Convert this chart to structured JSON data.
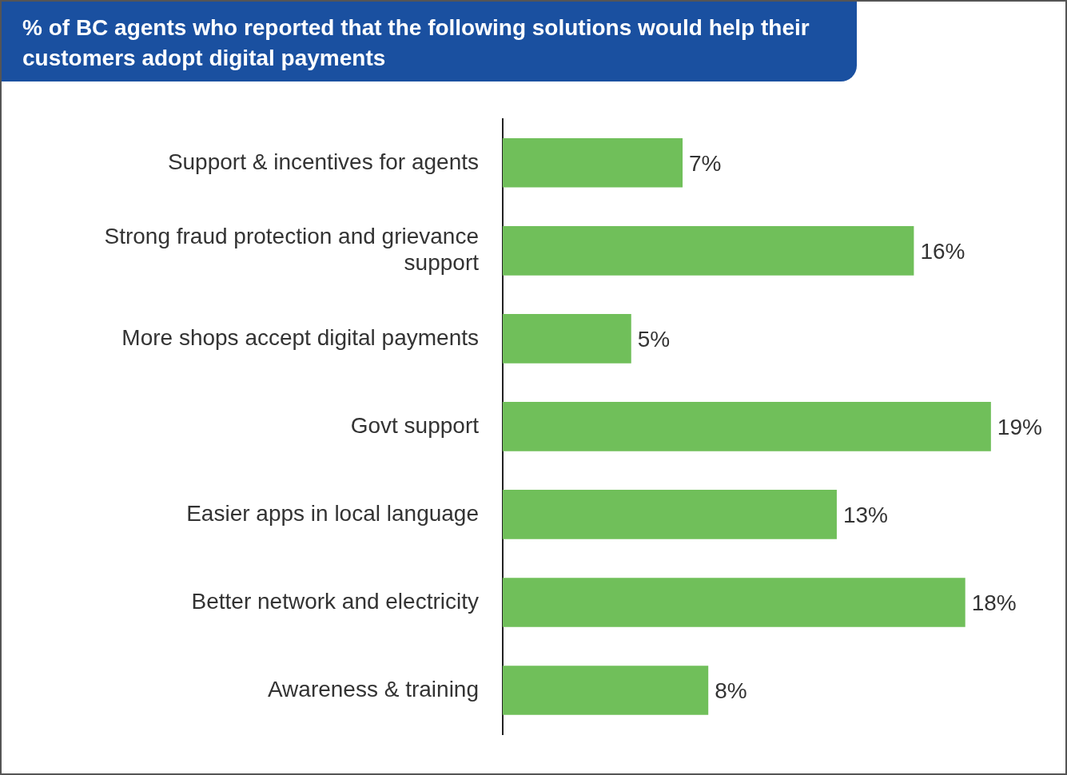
{
  "chart_data": {
    "type": "bar",
    "orientation": "horizontal",
    "title": "% of BC agents who reported that the following solutions would help their customers adopt digital payments",
    "categories": [
      "Support & incentives for agents",
      "Strong fraud protection and grievance support",
      "More shops accept digital payments",
      "Govt support",
      "Easier apps in local language",
      "Better network and electricity",
      "Awareness & training"
    ],
    "values": [
      7,
      16,
      5,
      19,
      13,
      18,
      8
    ],
    "value_labels": [
      "7%",
      "16%",
      "5%",
      "19%",
      "13%",
      "18%",
      "8%"
    ],
    "color": "#70bf5a",
    "tick_labels": "y"
  }
}
